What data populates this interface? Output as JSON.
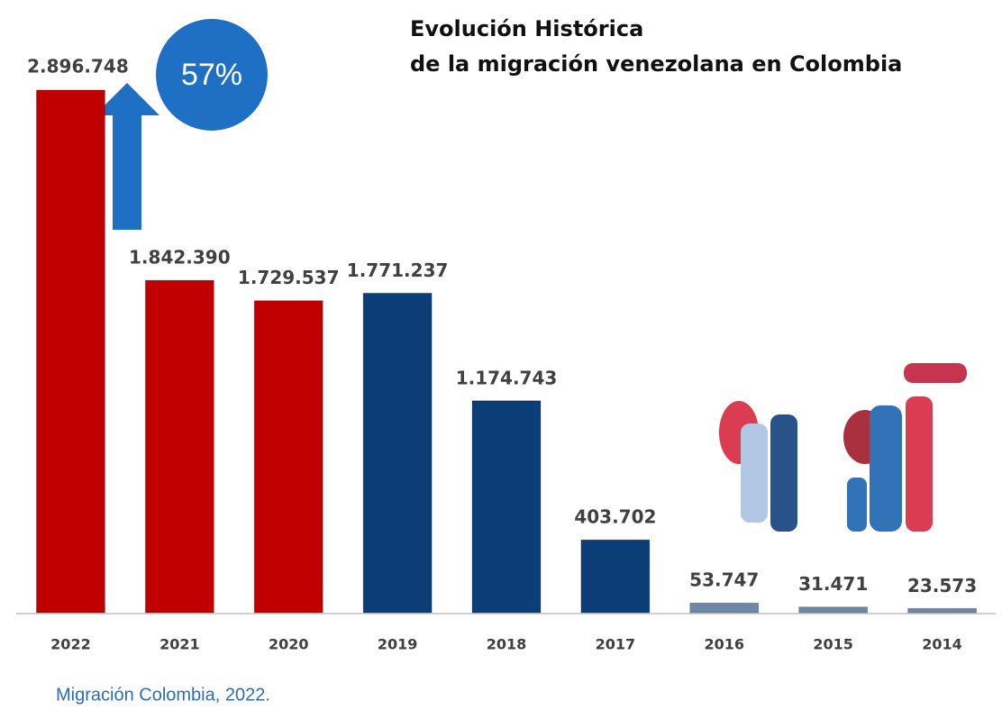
{
  "chart_data": {
    "type": "bar",
    "title": [
      "Evolución Histórica",
      "de la migración venezolana en Colombia"
    ],
    "categories": [
      "2022",
      "2021",
      "2020",
      "2019",
      "2018",
      "2017",
      "2016",
      "2015",
      "2014"
    ],
    "values": [
      2896748,
      1842390,
      1729537,
      1771237,
      1174743,
      403702,
      53747,
      31471,
      23573
    ],
    "value_labels": [
      "2.896.748",
      "1.842.390",
      "1.729.537",
      "1.771.237",
      "1.174.743",
      "403.702",
      "53.747",
      "31.471",
      "23.573"
    ],
    "colors": [
      "#c00000",
      "#c00000",
      "#c00000",
      "#0b3d77",
      "#0b3d77",
      "#0b3d77",
      "#6f87a6",
      "#6f87a6",
      "#6f87a6"
    ],
    "annotation": "57%",
    "source": "Migración Colombia, 2022."
  }
}
